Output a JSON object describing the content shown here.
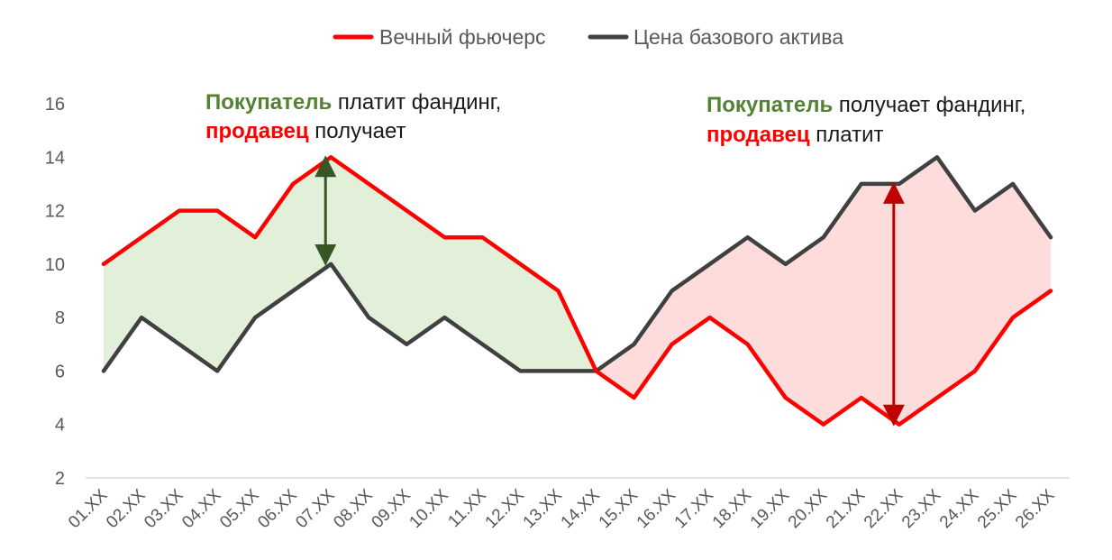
{
  "chart_data": {
    "type": "line",
    "categories": [
      "01.XX",
      "02.XX",
      "03.XX",
      "04.XX",
      "05.XX",
      "06.XX",
      "07.XX",
      "08.XX",
      "09.XX",
      "10.XX",
      "11.XX",
      "12.XX",
      "13.XX",
      "14.XX",
      "15.XX",
      "16.XX",
      "17.XX",
      "18.XX",
      "19.XX",
      "20.XX",
      "21.XX",
      "22.XX",
      "23.XX",
      "24.XX",
      "25.XX",
      "26.XX"
    ],
    "series": [
      {
        "name": "Вечный фьючерс",
        "color": "#ff0000",
        "values": [
          10,
          11,
          12,
          12,
          11,
          13,
          14,
          13,
          12,
          11,
          11,
          10,
          9,
          6,
          5,
          7,
          8,
          7,
          5,
          4,
          5,
          4,
          5,
          6,
          8,
          9
        ]
      },
      {
        "name": "Цена базового актива",
        "color": "#404040",
        "values": [
          6,
          8,
          7,
          6,
          8,
          9,
          10,
          8,
          7,
          8,
          7,
          6,
          6,
          6,
          7,
          9,
          10,
          11,
          10,
          11,
          13,
          13,
          14,
          12,
          13,
          11
        ]
      }
    ],
    "ylim": [
      2,
      16
    ],
    "yticks": [
      2,
      4,
      6,
      8,
      10,
      12,
      14,
      16
    ],
    "grid": false,
    "legend": "top-right",
    "fill_colors": {
      "positive": "#e2efd9",
      "negative": "#ffdcdc"
    },
    "arrows": [
      {
        "category": "07.XX",
        "from": 10,
        "to": 14,
        "color": "#375623"
      },
      {
        "category": "22.XX",
        "from": 4,
        "to": 13,
        "color": "#c00000"
      }
    ],
    "annotations": [
      {
        "line1": {
          "bold": "Покупатель",
          "rest": " платит фандинг,"
        },
        "line2": {
          "bold": "продавец",
          "rest": " получает"
        }
      },
      {
        "line1": {
          "bold": "Покупатель",
          "rest": " получает фандинг,"
        },
        "line2": {
          "bold": "продавец",
          "rest": " платит"
        }
      }
    ]
  }
}
